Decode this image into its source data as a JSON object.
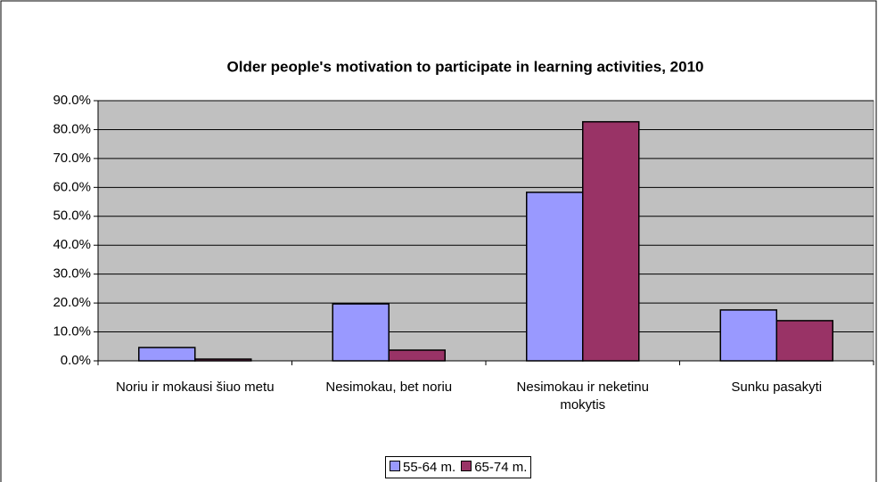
{
  "chart_data": {
    "type": "bar",
    "title": "Older people's motivation to participate in learning activities, 2010",
    "categories": [
      "Noriu ir mokausi šiuo metu",
      "Nesimokau, bet noriu",
      "Nesimokau ir neketinu mokytis",
      "Sunku pasakyti"
    ],
    "series": [
      {
        "name": "55-64 m.",
        "color": "#9999ff",
        "values": [
          4.6,
          19.7,
          58.3,
          17.6
        ]
      },
      {
        "name": "65-74 m.",
        "color": "#993366",
        "values": [
          0.6,
          3.7,
          82.7,
          13.9
        ]
      }
    ],
    "ylim": [
      0,
      90
    ],
    "yticks": [
      {
        "value": 0,
        "label": "0.0%"
      },
      {
        "value": 10,
        "label": "10.0%"
      },
      {
        "value": 20,
        "label": "20.0%"
      },
      {
        "value": 30,
        "label": "30.0%"
      },
      {
        "value": 40,
        "label": "40.0%"
      },
      {
        "value": 50,
        "label": "50.0%"
      },
      {
        "value": 60,
        "label": "60.0%"
      },
      {
        "value": 70,
        "label": "70.0%"
      },
      {
        "value": 80,
        "label": "80.0%"
      },
      {
        "value": 90,
        "label": "90.0%"
      }
    ],
    "grid": true,
    "legend": "bottom"
  }
}
